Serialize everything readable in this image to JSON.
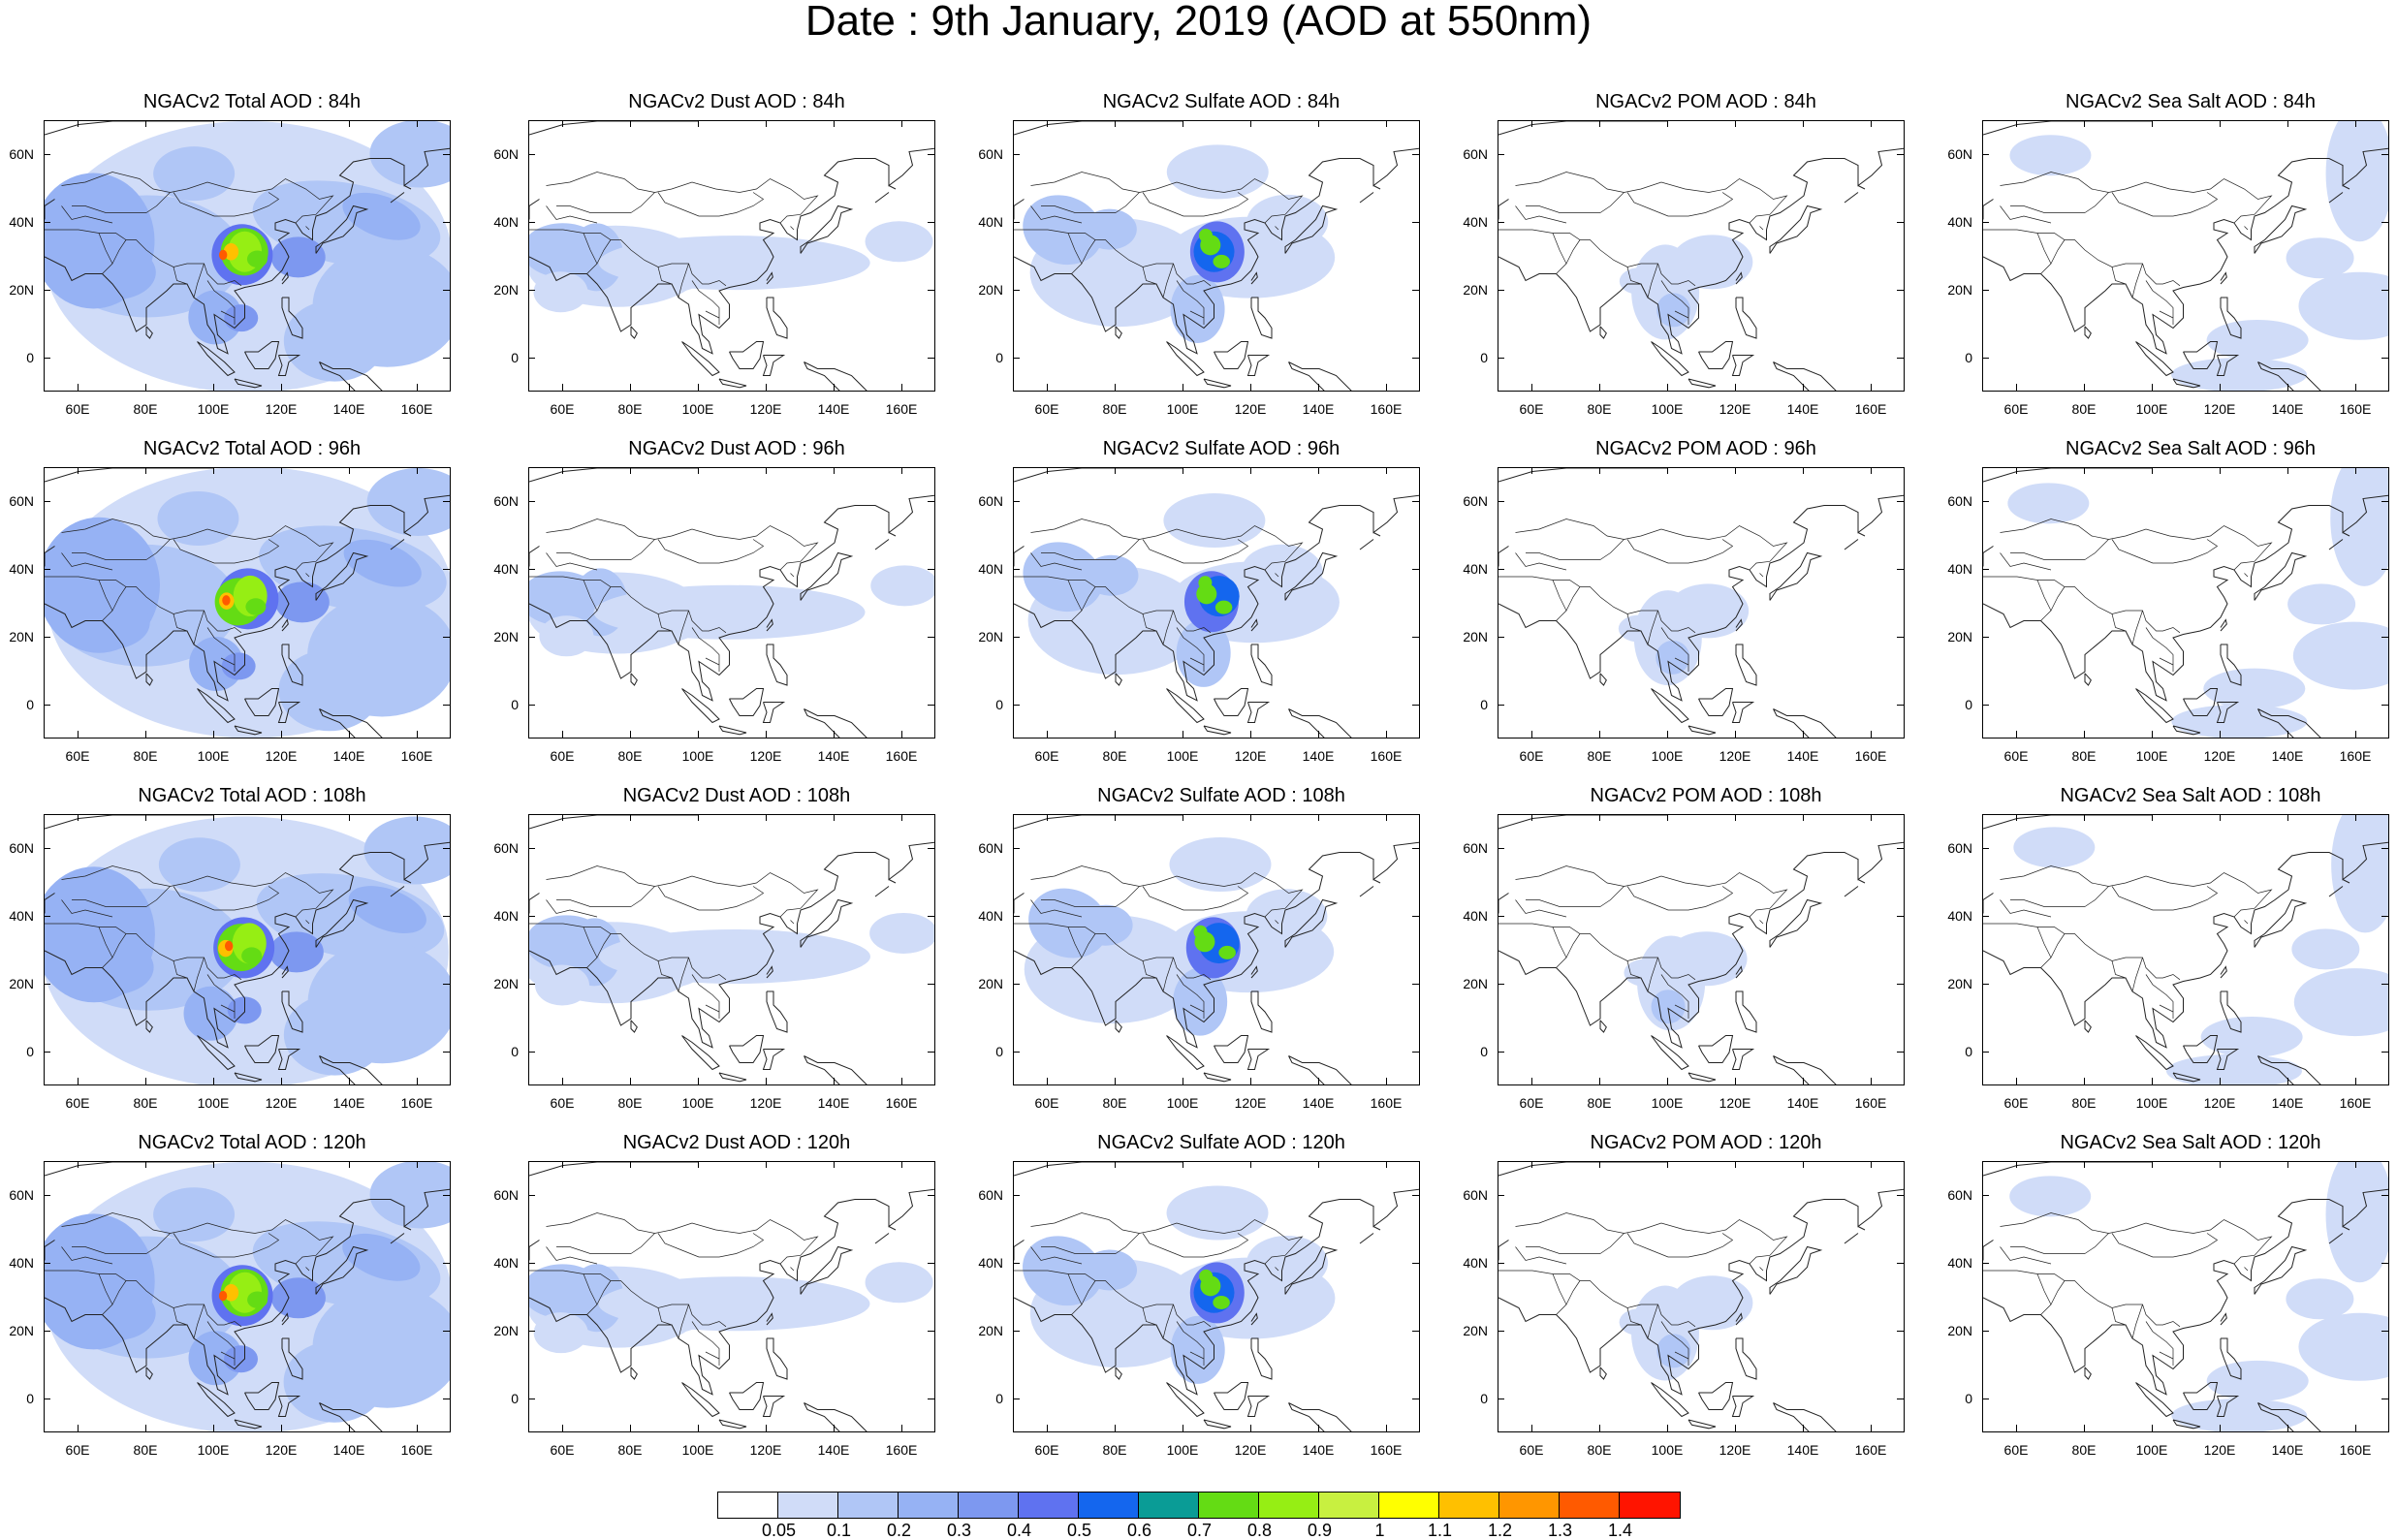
{
  "title": "Date : 9th January, 2019 (AOD at 550nm)",
  "axes": {
    "lat_ticks": [
      "60N",
      "40N",
      "20N",
      "0"
    ],
    "lat_values": [
      60,
      40,
      20,
      0
    ],
    "lon_ticks": [
      "60E",
      "80E",
      "100E",
      "120E",
      "140E",
      "160E"
    ],
    "lon_values": [
      60,
      80,
      100,
      120,
      140,
      160
    ],
    "lat_range": [
      -10,
      70
    ],
    "lon_range": [
      50,
      170
    ]
  },
  "rows": [
    {
      "hour": "84h",
      "panels": [
        {
          "type": "total",
          "title": "NGACv2 Total AOD : 84h"
        },
        {
          "type": "dust",
          "title": "NGACv2 Dust AOD : 84h"
        },
        {
          "type": "sulfate",
          "title": "NGACv2 Sulfate AOD : 84h"
        },
        {
          "type": "pom",
          "title": "NGACv2 POM AOD : 84h"
        },
        {
          "type": "seasalt",
          "title": "NGACv2 Sea Salt AOD : 84h"
        }
      ]
    },
    {
      "hour": "96h",
      "panels": [
        {
          "type": "total",
          "title": "NGACv2 Total AOD : 96h"
        },
        {
          "type": "dust",
          "title": "NGACv2 Dust AOD : 96h"
        },
        {
          "type": "sulfate",
          "title": "NGACv2 Sulfate AOD : 96h"
        },
        {
          "type": "pom",
          "title": "NGACv2 POM AOD : 96h"
        },
        {
          "type": "seasalt",
          "title": "NGACv2 Sea Salt AOD : 96h"
        }
      ]
    },
    {
      "hour": "108h",
      "panels": [
        {
          "type": "total",
          "title": "NGACv2 Total AOD : 108h"
        },
        {
          "type": "dust",
          "title": "NGACv2 Dust AOD : 108h"
        },
        {
          "type": "sulfate",
          "title": "NGACv2 Sulfate AOD : 108h"
        },
        {
          "type": "pom",
          "title": "NGACv2 POM AOD : 108h"
        },
        {
          "type": "seasalt",
          "title": "NGACv2 Sea Salt AOD : 108h"
        }
      ]
    },
    {
      "hour": "120h",
      "panels": [
        {
          "type": "total",
          "title": "NGACv2 Total AOD : 120h"
        },
        {
          "type": "dust",
          "title": "NGACv2 Dust AOD : 120h"
        },
        {
          "type": "sulfate",
          "title": "NGACv2 Sulfate AOD : 120h"
        },
        {
          "type": "pom",
          "title": "NGACv2 POM AOD : 120h"
        },
        {
          "type": "seasalt",
          "title": "NGACv2 Sea Salt  AOD : 120h"
        }
      ]
    }
  ],
  "colorbar": {
    "labels": [
      "0.05",
      "0.1",
      "0.2",
      "0.3",
      "0.4",
      "0.5",
      "0.6",
      "0.7",
      "0.8",
      "0.9",
      "1",
      "1.1",
      "1.2",
      "1.3",
      "1.4"
    ],
    "colors": [
      "#ffffff",
      "#d0dcf8",
      "#b0c6f6",
      "#96b2f4",
      "#7d98f0",
      "#5f72f0",
      "#1466ee",
      "#0a9c96",
      "#64dc14",
      "#96ee14",
      "#c8f040",
      "#ffff00",
      "#ffc000",
      "#ff9600",
      "#ff5a00",
      "#ff1400"
    ]
  }
}
